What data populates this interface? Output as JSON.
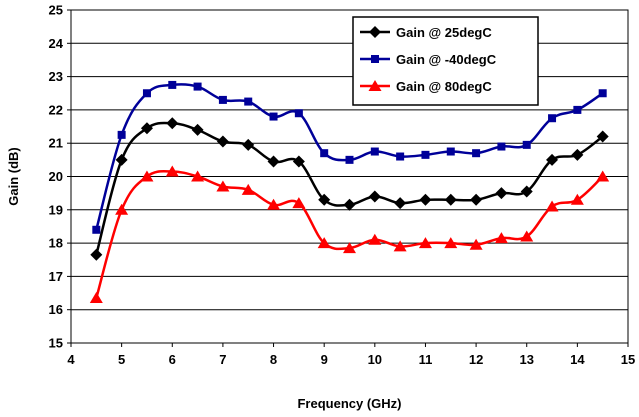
{
  "chart_data": {
    "type": "line",
    "title": "",
    "xlabel": "Frequency (GHz)",
    "ylabel": "Gain (dB)",
    "xlim": [
      4,
      15
    ],
    "ylim": [
      15,
      25
    ],
    "x_ticks": [
      4,
      5,
      6,
      7,
      8,
      9,
      10,
      11,
      12,
      13,
      14,
      15
    ],
    "y_ticks": [
      15,
      16,
      17,
      18,
      19,
      20,
      21,
      22,
      23,
      24,
      25
    ],
    "grid": "horizontal",
    "legend_position": "top-right",
    "x": [
      4.5,
      5.0,
      5.5,
      6.0,
      6.5,
      7.0,
      7.5,
      8.0,
      8.5,
      9.0,
      9.5,
      10.0,
      10.5,
      11.0,
      11.5,
      12.0,
      12.5,
      13.0,
      13.5,
      14.0,
      14.5
    ],
    "series": [
      {
        "name": "Gain @ 25degC",
        "color": "#000000",
        "marker": "diamond",
        "values": [
          17.65,
          20.5,
          21.45,
          21.6,
          21.4,
          21.05,
          20.95,
          20.45,
          20.45,
          19.3,
          19.15,
          19.4,
          19.2,
          19.3,
          19.3,
          19.3,
          19.5,
          19.55,
          20.5,
          20.65,
          21.2
        ]
      },
      {
        "name": "Gain @ -40degC",
        "color": "#000099",
        "marker": "square",
        "values": [
          18.4,
          21.25,
          22.5,
          22.75,
          22.7,
          22.3,
          22.25,
          21.8,
          21.9,
          20.7,
          20.5,
          20.75,
          20.6,
          20.65,
          20.75,
          20.7,
          20.9,
          20.95,
          21.75,
          22.0,
          22.5
        ]
      },
      {
        "name": "Gain @ 80degC",
        "color": "#ff0000",
        "marker": "triangle",
        "values": [
          16.35,
          19.0,
          20.0,
          20.15,
          20.0,
          19.7,
          19.6,
          19.15,
          19.2,
          18.0,
          17.85,
          18.1,
          17.9,
          18.0,
          18.0,
          17.95,
          18.15,
          18.2,
          19.1,
          19.3,
          20.0
        ]
      }
    ]
  }
}
